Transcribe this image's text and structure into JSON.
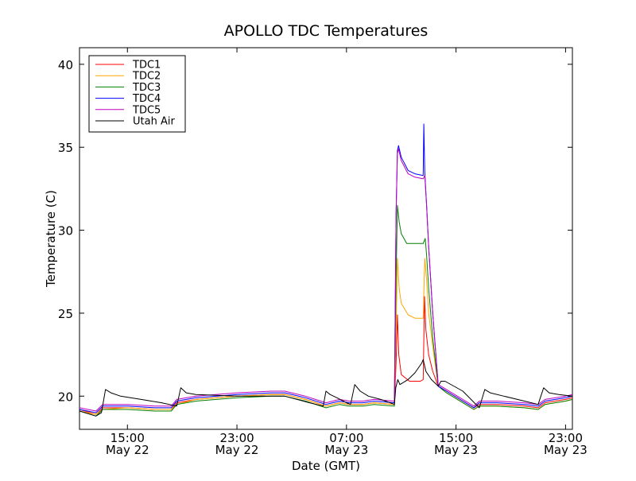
{
  "chart_data": {
    "type": "line",
    "title": "APOLLO TDC Temperatures",
    "xlabel": "Date (GMT)",
    "ylabel": "Temperature (C)",
    "x_unit": "hours since May 22 00:00 GMT",
    "xlim": [
      11.5,
      47.5
    ],
    "ylim": [
      18,
      41
    ],
    "y_ticks": [
      20,
      25,
      30,
      35,
      40
    ],
    "x_ticks": [
      {
        "x": 15,
        "line1": "15:00",
        "line2": "May 22"
      },
      {
        "x": 23,
        "line1": "23:00",
        "line2": "May 22"
      },
      {
        "x": 31,
        "line1": "07:00",
        "line2": "May 23"
      },
      {
        "x": 39,
        "line1": "15:00",
        "line2": "May 23"
      },
      {
        "x": 47,
        "line1": "23:00",
        "line2": "May 23"
      }
    ],
    "grid": false,
    "legend_position": "top-left",
    "series": [
      {
        "name": "TDC1",
        "color": "#ff0000",
        "points": [
          [
            11.5,
            19.2
          ],
          [
            12.7,
            18.9
          ],
          [
            13.2,
            19.3
          ],
          [
            15,
            19.3
          ],
          [
            17,
            19.2
          ],
          [
            18.2,
            19.2
          ],
          [
            18.6,
            19.6
          ],
          [
            20,
            19.8
          ],
          [
            23,
            20.0
          ],
          [
            25.5,
            20.1
          ],
          [
            26.5,
            20.1
          ],
          [
            28,
            19.8
          ],
          [
            29.5,
            19.4
          ],
          [
            30.5,
            19.6
          ],
          [
            31.2,
            19.5
          ],
          [
            32.2,
            19.5
          ],
          [
            33,
            19.6
          ],
          [
            34.5,
            19.5
          ],
          [
            34.62,
            22
          ],
          [
            34.72,
            24.9
          ],
          [
            34.82,
            22.5
          ],
          [
            35,
            21.3
          ],
          [
            35.6,
            20.9
          ],
          [
            36.4,
            20.9
          ],
          [
            36.6,
            21
          ],
          [
            36.7,
            26
          ],
          [
            36.8,
            24
          ],
          [
            37,
            22.5
          ],
          [
            37.3,
            21.5
          ],
          [
            37.7,
            20.6
          ],
          [
            38.3,
            20.3
          ],
          [
            39.5,
            19.7
          ],
          [
            40.3,
            19.3
          ],
          [
            40.7,
            19.5
          ],
          [
            42,
            19.5
          ],
          [
            44,
            19.4
          ],
          [
            45,
            19.3
          ],
          [
            45.5,
            19.6
          ],
          [
            47,
            19.8
          ],
          [
            47.5,
            19.9
          ]
        ]
      },
      {
        "name": "TDC2",
        "color": "#ffa500",
        "points": [
          [
            11.5,
            19.1
          ],
          [
            12.7,
            18.9
          ],
          [
            13.2,
            19.2
          ],
          [
            15,
            19.3
          ],
          [
            17,
            19.2
          ],
          [
            18.2,
            19.2
          ],
          [
            18.6,
            19.5
          ],
          [
            20,
            19.8
          ],
          [
            23,
            20.0
          ],
          [
            25.5,
            20.1
          ],
          [
            26.5,
            20.1
          ],
          [
            28,
            19.8
          ],
          [
            29.5,
            19.4
          ],
          [
            30.5,
            19.6
          ],
          [
            31.2,
            19.5
          ],
          [
            32.2,
            19.5
          ],
          [
            33,
            19.6
          ],
          [
            34.5,
            19.5
          ],
          [
            34.62,
            24
          ],
          [
            34.72,
            28.3
          ],
          [
            34.85,
            26.5
          ],
          [
            35,
            25.6
          ],
          [
            35.5,
            24.9
          ],
          [
            36,
            24.7
          ],
          [
            36.6,
            24.7
          ],
          [
            36.72,
            28.3
          ],
          [
            36.85,
            27
          ],
          [
            37,
            25
          ],
          [
            37.3,
            23
          ],
          [
            37.7,
            20.6
          ],
          [
            38.3,
            20.2
          ],
          [
            39.5,
            19.6
          ],
          [
            40.3,
            19.2
          ],
          [
            40.7,
            19.4
          ],
          [
            42,
            19.4
          ],
          [
            44,
            19.3
          ],
          [
            45,
            19.2
          ],
          [
            45.5,
            19.5
          ],
          [
            47,
            19.7
          ],
          [
            47.5,
            19.8
          ]
        ]
      },
      {
        "name": "TDC3",
        "color": "#008000",
        "points": [
          [
            11.5,
            19.1
          ],
          [
            12.7,
            18.8
          ],
          [
            13.2,
            19.2
          ],
          [
            15,
            19.2
          ],
          [
            17,
            19.1
          ],
          [
            18.2,
            19.1
          ],
          [
            18.6,
            19.5
          ],
          [
            20,
            19.7
          ],
          [
            23,
            19.9
          ],
          [
            25.5,
            20.0
          ],
          [
            26.5,
            20.0
          ],
          [
            28,
            19.7
          ],
          [
            29.5,
            19.3
          ],
          [
            30.5,
            19.5
          ],
          [
            31.2,
            19.4
          ],
          [
            32.2,
            19.4
          ],
          [
            33,
            19.5
          ],
          [
            34.5,
            19.4
          ],
          [
            34.62,
            27
          ],
          [
            34.72,
            31.5
          ],
          [
            34.85,
            30.5
          ],
          [
            35,
            29.8
          ],
          [
            35.4,
            29.2
          ],
          [
            36,
            29.2
          ],
          [
            36.6,
            29.2
          ],
          [
            36.75,
            29.5
          ],
          [
            36.85,
            28.5
          ],
          [
            37,
            26.5
          ],
          [
            37.3,
            23.5
          ],
          [
            37.7,
            20.6
          ],
          [
            38.3,
            20.2
          ],
          [
            39.5,
            19.6
          ],
          [
            40.3,
            19.2
          ],
          [
            40.7,
            19.4
          ],
          [
            42,
            19.4
          ],
          [
            44,
            19.3
          ],
          [
            45,
            19.2
          ],
          [
            45.5,
            19.5
          ],
          [
            47,
            19.7
          ],
          [
            47.5,
            19.8
          ]
        ]
      },
      {
        "name": "TDC4",
        "color": "#0000ff",
        "points": [
          [
            11.5,
            19.2
          ],
          [
            12.7,
            19.0
          ],
          [
            13.2,
            19.4
          ],
          [
            15,
            19.4
          ],
          [
            17,
            19.3
          ],
          [
            18.2,
            19.3
          ],
          [
            18.6,
            19.7
          ],
          [
            20,
            19.9
          ],
          [
            23,
            20.1
          ],
          [
            25.5,
            20.2
          ],
          [
            26.5,
            20.2
          ],
          [
            28,
            19.9
          ],
          [
            29.5,
            19.5
          ],
          [
            30.5,
            19.7
          ],
          [
            31.2,
            19.6
          ],
          [
            32.2,
            19.6
          ],
          [
            33,
            19.7
          ],
          [
            34.5,
            19.6
          ],
          [
            34.62,
            31
          ],
          [
            34.72,
            34.8
          ],
          [
            34.8,
            35.1
          ],
          [
            35,
            34.4
          ],
          [
            35.5,
            33.6
          ],
          [
            36,
            33.4
          ],
          [
            36.6,
            33.3
          ],
          [
            36.65,
            36.4
          ],
          [
            36.72,
            33.5
          ],
          [
            36.85,
            31.5
          ],
          [
            37,
            29
          ],
          [
            37.3,
            25
          ],
          [
            37.7,
            20.6
          ],
          [
            38.3,
            20.3
          ],
          [
            39.5,
            19.7
          ],
          [
            40.3,
            19.3
          ],
          [
            40.7,
            19.6
          ],
          [
            42,
            19.6
          ],
          [
            44,
            19.5
          ],
          [
            45,
            19.4
          ],
          [
            45.5,
            19.7
          ],
          [
            47,
            19.9
          ],
          [
            47.5,
            20.0
          ]
        ]
      },
      {
        "name": "TDC5",
        "color": "#bf00bf",
        "points": [
          [
            11.5,
            19.3
          ],
          [
            12.7,
            19.1
          ],
          [
            13.2,
            19.5
          ],
          [
            15,
            19.5
          ],
          [
            17,
            19.4
          ],
          [
            18.2,
            19.4
          ],
          [
            18.6,
            19.8
          ],
          [
            20,
            20.0
          ],
          [
            23,
            20.2
          ],
          [
            25.5,
            20.3
          ],
          [
            26.5,
            20.3
          ],
          [
            28,
            20.0
          ],
          [
            29.5,
            19.6
          ],
          [
            30.5,
            19.8
          ],
          [
            31.2,
            19.7
          ],
          [
            32.2,
            19.7
          ],
          [
            33,
            19.8
          ],
          [
            34.5,
            19.7
          ],
          [
            34.62,
            31
          ],
          [
            34.72,
            34.6
          ],
          [
            34.8,
            34.9
          ],
          [
            35,
            34.2
          ],
          [
            35.5,
            33.4
          ],
          [
            36,
            33.2
          ],
          [
            36.6,
            33.1
          ],
          [
            36.72,
            33.3
          ],
          [
            36.85,
            31.5
          ],
          [
            37,
            29
          ],
          [
            37.3,
            25
          ],
          [
            37.7,
            20.7
          ],
          [
            38.3,
            20.4
          ],
          [
            39.5,
            19.8
          ],
          [
            40.3,
            19.4
          ],
          [
            40.7,
            19.7
          ],
          [
            42,
            19.7
          ],
          [
            44,
            19.6
          ],
          [
            45,
            19.5
          ],
          [
            45.5,
            19.8
          ],
          [
            47,
            20.0
          ],
          [
            47.5,
            20.1
          ]
        ]
      },
      {
        "name": "Utah Air",
        "color": "#000000",
        "points": [
          [
            11.5,
            19.1
          ],
          [
            12.7,
            18.8
          ],
          [
            13.1,
            19.0
          ],
          [
            13.4,
            20.4
          ],
          [
            13.8,
            20.2
          ],
          [
            14.5,
            20.0
          ],
          [
            16,
            19.8
          ],
          [
            17.5,
            19.6
          ],
          [
            18.6,
            19.4
          ],
          [
            18.9,
            20.5
          ],
          [
            19.3,
            20.2
          ],
          [
            20,
            20.1
          ],
          [
            23,
            20.0
          ],
          [
            25.5,
            20.0
          ],
          [
            26.5,
            20.0
          ],
          [
            28.3,
            19.6
          ],
          [
            29.3,
            19.4
          ],
          [
            29.5,
            20.3
          ],
          [
            29.8,
            20.1
          ],
          [
            30.3,
            19.9
          ],
          [
            31,
            19.6
          ],
          [
            31.3,
            19.5
          ],
          [
            31.6,
            20.7
          ],
          [
            32,
            20.3
          ],
          [
            32.6,
            20.0
          ],
          [
            33.5,
            19.8
          ],
          [
            34.2,
            19.6
          ],
          [
            34.5,
            19.5
          ],
          [
            34.6,
            20.5
          ],
          [
            34.75,
            21.0
          ],
          [
            34.9,
            20.7
          ],
          [
            35.5,
            21.0
          ],
          [
            36,
            21.4
          ],
          [
            36.5,
            22.0
          ],
          [
            36.6,
            22.2
          ],
          [
            36.8,
            21.5
          ],
          [
            37.2,
            21.0
          ],
          [
            37.7,
            20.6
          ],
          [
            37.9,
            20.9
          ],
          [
            38.2,
            20.9
          ],
          [
            39.5,
            20.3
          ],
          [
            40.7,
            19.3
          ],
          [
            41.1,
            20.4
          ],
          [
            41.5,
            20.2
          ],
          [
            42.5,
            20.0
          ],
          [
            44,
            19.7
          ],
          [
            45,
            19.5
          ],
          [
            45.4,
            20.5
          ],
          [
            45.8,
            20.2
          ],
          [
            46.5,
            20.1
          ],
          [
            47.5,
            20.0
          ]
        ]
      }
    ]
  }
}
